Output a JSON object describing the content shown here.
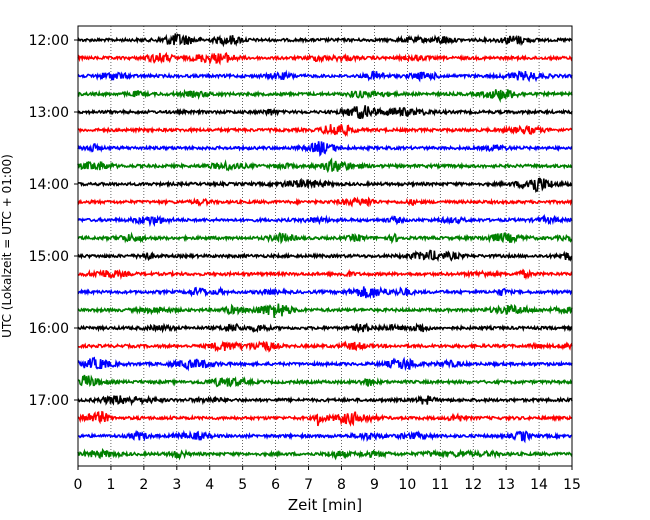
{
  "chart_data": {
    "type": "line",
    "title": "",
    "xlabel": "Zeit  [min]",
    "ylabel": "UTC (Lokalzeit = UTC + 01:00)",
    "xlim": [
      0,
      15
    ],
    "x_ticks": [
      "0",
      "1",
      "2",
      "3",
      "4",
      "5",
      "6",
      "7",
      "8",
      "9",
      "10",
      "11",
      "12",
      "13",
      "14",
      "15"
    ],
    "y_ticks": [
      "12:00",
      "13:00",
      "14:00",
      "15:00",
      "16:00",
      "17:00"
    ],
    "trace_interval_minutes": 15,
    "trace_colors": [
      "#000000",
      "#ff0000",
      "#0000ff",
      "#008000"
    ],
    "grid": "vertical dotted lines at each minute",
    "traces": [
      {
        "start": "12:00",
        "color": "#000000"
      },
      {
        "start": "12:15",
        "color": "#ff0000"
      },
      {
        "start": "12:30",
        "color": "#0000ff"
      },
      {
        "start": "12:45",
        "color": "#008000"
      },
      {
        "start": "13:00",
        "color": "#000000"
      },
      {
        "start": "13:15",
        "color": "#ff0000"
      },
      {
        "start": "13:30",
        "color": "#0000ff"
      },
      {
        "start": "13:45",
        "color": "#008000"
      },
      {
        "start": "14:00",
        "color": "#000000"
      },
      {
        "start": "14:15",
        "color": "#ff0000"
      },
      {
        "start": "14:30",
        "color": "#0000ff"
      },
      {
        "start": "14:45",
        "color": "#008000"
      },
      {
        "start": "15:00",
        "color": "#000000"
      },
      {
        "start": "15:15",
        "color": "#ff0000"
      },
      {
        "start": "15:30",
        "color": "#0000ff"
      },
      {
        "start": "15:45",
        "color": "#008000"
      },
      {
        "start": "16:00",
        "color": "#000000"
      },
      {
        "start": "16:15",
        "color": "#ff0000"
      },
      {
        "start": "16:30",
        "color": "#0000ff"
      },
      {
        "start": "16:45",
        "color": "#008000"
      },
      {
        "start": "17:00",
        "color": "#000000"
      },
      {
        "start": "17:15",
        "color": "#ff0000"
      },
      {
        "start": "17:30",
        "color": "#0000ff"
      },
      {
        "start": "17:45",
        "color": "#008000"
      }
    ]
  }
}
